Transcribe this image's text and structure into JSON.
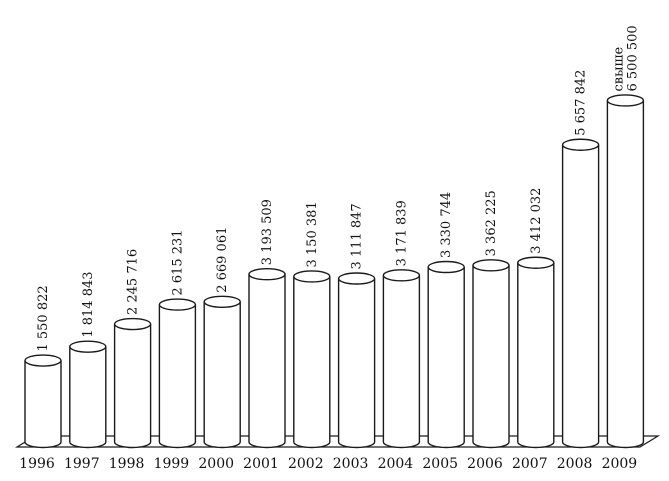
{
  "chart_data": {
    "type": "bar",
    "style": "3d-cylinder",
    "categories": [
      "1996",
      "1997",
      "1998",
      "1999",
      "2000",
      "2001",
      "2002",
      "2003",
      "2004",
      "2005",
      "2006",
      "2007",
      "2008",
      "2009"
    ],
    "values": [
      1550822,
      1814843,
      2245716,
      2615231,
      2669061,
      3193509,
      3150381,
      3111847,
      3171839,
      3330744,
      3362225,
      3412032,
      5657842,
      6500500
    ],
    "value_labels": [
      [
        "1 550 822"
      ],
      [
        "1 814 843"
      ],
      [
        "2 245 716"
      ],
      [
        "2 615 231"
      ],
      [
        "2 669 061"
      ],
      [
        "3 193 509"
      ],
      [
        "3 150 381"
      ],
      [
        "3 111 847"
      ],
      [
        "3 171 839"
      ],
      [
        "3 330 744"
      ],
      [
        "3 362 225"
      ],
      [
        "3 412 032"
      ],
      [
        "5 657 842"
      ],
      [
        "свыше",
        "6 500 500"
      ]
    ],
    "title": "",
    "xlabel": "",
    "ylabel": "",
    "ylim": [
      0,
      6700000
    ],
    "grid": false,
    "legend": "none",
    "colors": {
      "bar_fill": "#ffffff",
      "stroke": "#1a1a1a",
      "text": "#111111"
    }
  }
}
